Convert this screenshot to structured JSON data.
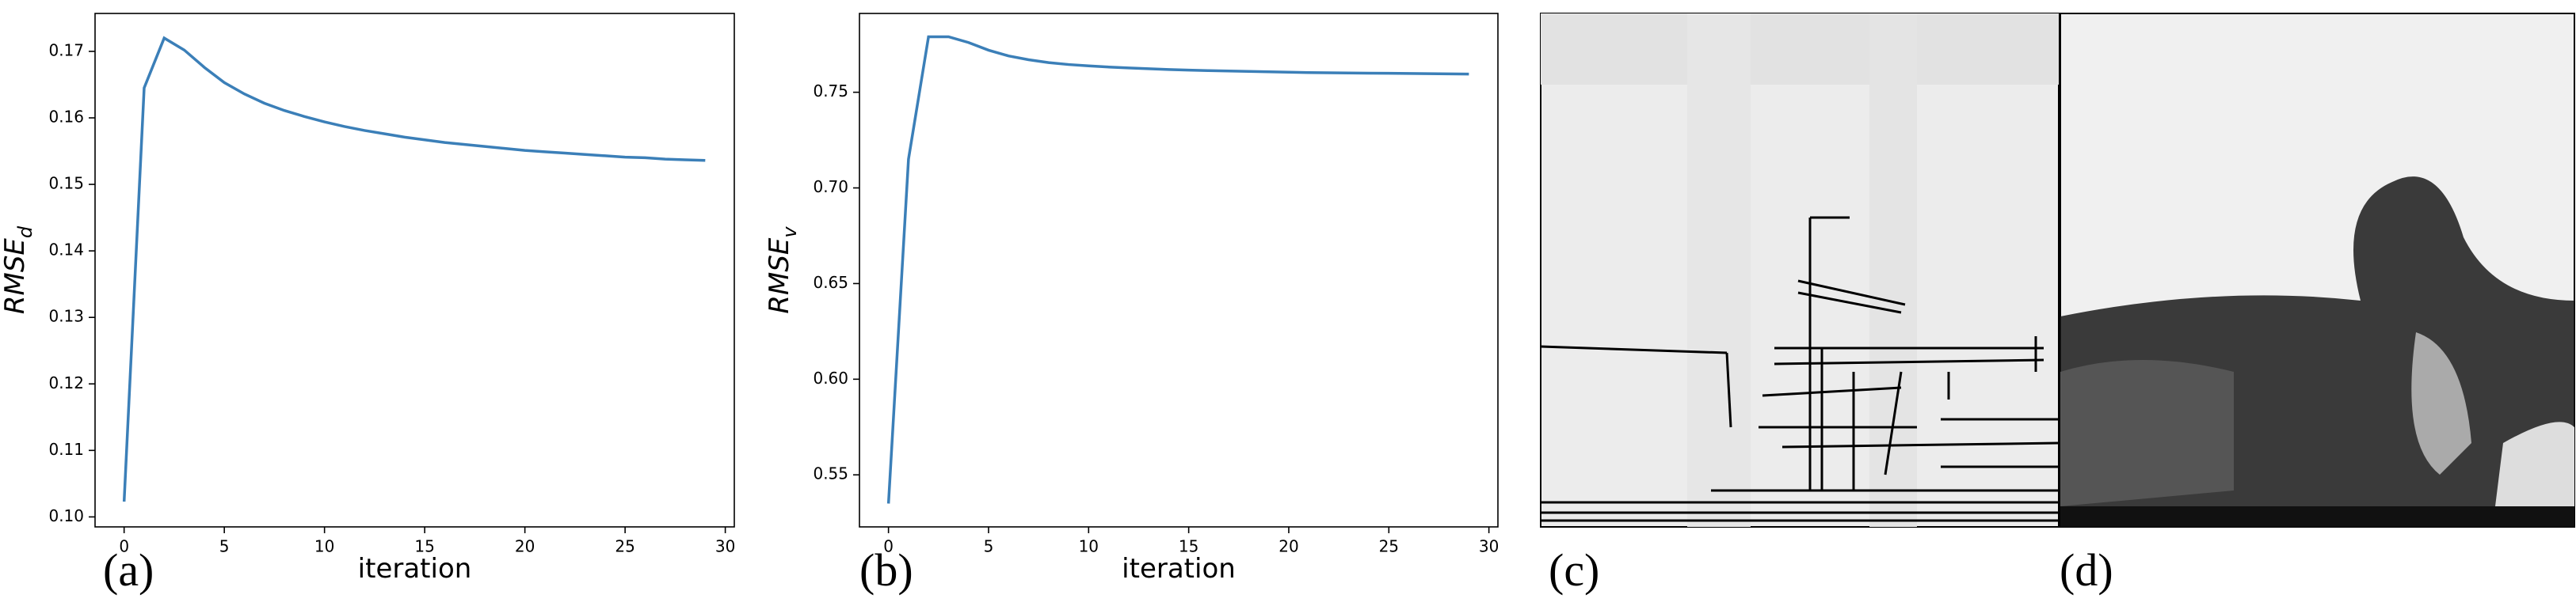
{
  "chart_data": [
    {
      "type": "line",
      "xlabel": "iteration",
      "ylabel": "RMSE",
      "ylabel_subscript": "d",
      "x": [
        0,
        1,
        2,
        3,
        4,
        5,
        6,
        7,
        8,
        9,
        10,
        11,
        12,
        13,
        14,
        15,
        16,
        17,
        18,
        19,
        20,
        21,
        22,
        23,
        24,
        25,
        26,
        27,
        28,
        29
      ],
      "series": [
        {
          "color": "#3b7fb8",
          "values": [
            0.1023,
            0.1645,
            0.172,
            0.1702,
            0.1676,
            0.1653,
            0.1636,
            0.1622,
            0.1611,
            0.1602,
            0.1594,
            0.1587,
            0.1581,
            0.1576,
            0.1571,
            0.1567,
            0.1563,
            0.156,
            0.1557,
            0.1554,
            0.1551,
            0.1549,
            0.1547,
            0.1545,
            0.1543,
            0.1541,
            0.154,
            0.1538,
            0.1537,
            0.1536
          ]
        }
      ],
      "xlim": [
        -1.45,
        30.45
      ],
      "xticks": [
        0,
        5,
        10,
        15,
        20,
        25,
        30
      ],
      "ylim": [
        0.0985,
        0.1757
      ],
      "yticks": [
        {
          "value": 0.1,
          "label": "0.10"
        },
        0.11,
        0.12,
        0.13,
        0.14,
        0.15,
        0.16,
        0.17
      ]
    },
    {
      "type": "line",
      "xlabel": "iteration",
      "ylabel": "RMSE",
      "ylabel_subscript": "v",
      "x": [
        0,
        1,
        2,
        3,
        4,
        5,
        6,
        7,
        8,
        9,
        10,
        11,
        12,
        13,
        14,
        15,
        16,
        17,
        18,
        19,
        20,
        21,
        22,
        23,
        24,
        25,
        26,
        27,
        28,
        29
      ],
      "series": [
        {
          "color": "#3b7fb8",
          "values": [
            0.535,
            0.715,
            0.779,
            0.779,
            0.776,
            0.772,
            0.769,
            0.767,
            0.7655,
            0.7645,
            0.7638,
            0.7632,
            0.7627,
            0.7623,
            0.7619,
            0.7616,
            0.7613,
            0.7611,
            0.7609,
            0.7607,
            0.7605,
            0.7603,
            0.7602,
            0.7601,
            0.76,
            0.7599,
            0.7598,
            0.7597,
            0.7596,
            0.7595
          ]
        }
      ],
      "xlim": [
        -1.45,
        30.45
      ],
      "xticks": [
        0,
        5,
        10,
        15,
        20,
        25,
        30
      ],
      "ylim": [
        0.5228,
        0.7912
      ],
      "yticks": [
        0.55,
        {
          "value": 0.6,
          "label": "0.60"
        },
        0.65,
        {
          "value": 0.7,
          "label": "0.70"
        },
        0.75
      ]
    }
  ],
  "panel_labels": [
    "(a)",
    "(b)",
    "(c)",
    "(d)"
  ]
}
